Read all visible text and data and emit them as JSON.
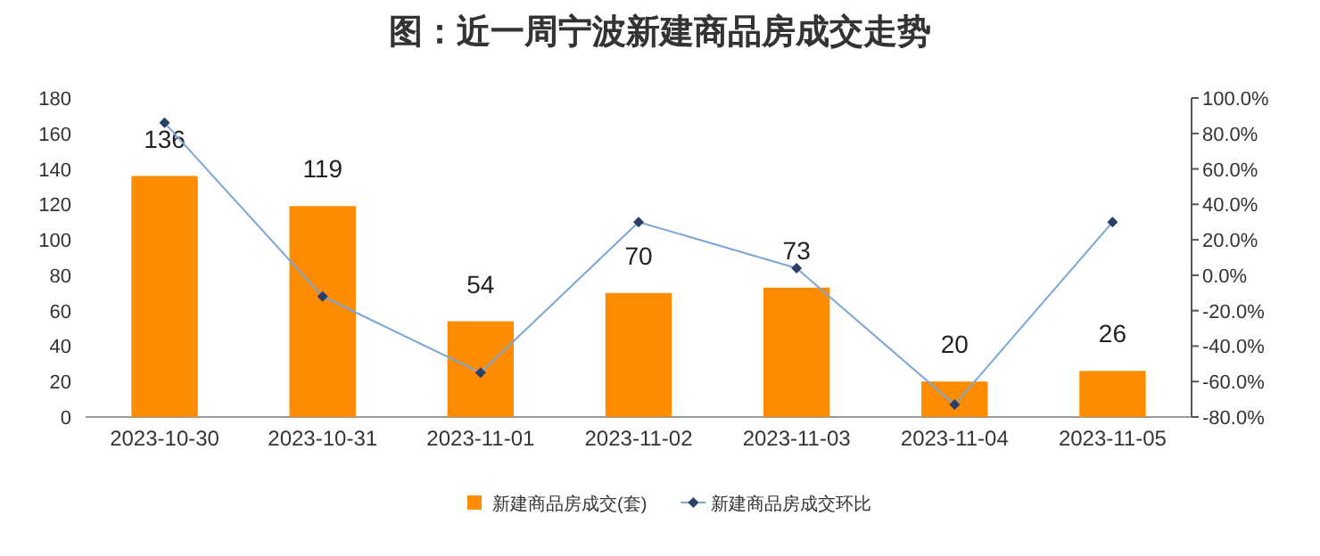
{
  "chart_data": {
    "type": "bar",
    "title": "图：近一周宁波新建商品房成交走势",
    "categories": [
      "2023-10-30",
      "2023-10-31",
      "2023-11-01",
      "2023-11-02",
      "2023-11-03",
      "2023-11-04",
      "2023-11-05"
    ],
    "series": [
      {
        "name": "新建商品房成交(套)",
        "color": "#ff8c00",
        "values": [
          136,
          119,
          54,
          70,
          73,
          20,
          26
        ],
        "value_labels": [
          "136",
          "119",
          "54",
          "70",
          "73",
          "20",
          "26"
        ]
      },
      {
        "name": "新建商品房成交环比",
        "type": "line",
        "axis": "y2",
        "color": "#7ba7d8",
        "marker": "diamond",
        "values": [
          86,
          -12,
          -55,
          30,
          4,
          -73,
          30
        ]
      }
    ],
    "ylim": [
      0,
      180
    ],
    "yticks": [
      0,
      20,
      40,
      60,
      80,
      100,
      120,
      140,
      160,
      180
    ],
    "y2lim": [
      -80,
      100
    ],
    "y2ticks": [
      {
        "value": -80,
        "label": "-80.0%"
      },
      {
        "value": -60,
        "label": "-60.0%"
      },
      {
        "value": -40,
        "label": "-40.0%"
      },
      {
        "value": -20,
        "label": "-20.0%"
      },
      {
        "value": 0,
        "label": "0.0%"
      },
      {
        "value": 20,
        "label": "20.0%"
      },
      {
        "value": 40,
        "label": "40.0%"
      },
      {
        "value": 60,
        "label": "60.0%"
      },
      {
        "value": 80,
        "label": "80.0%"
      },
      {
        "value": 100,
        "label": "100.0%"
      }
    ],
    "legend": "bottom"
  }
}
